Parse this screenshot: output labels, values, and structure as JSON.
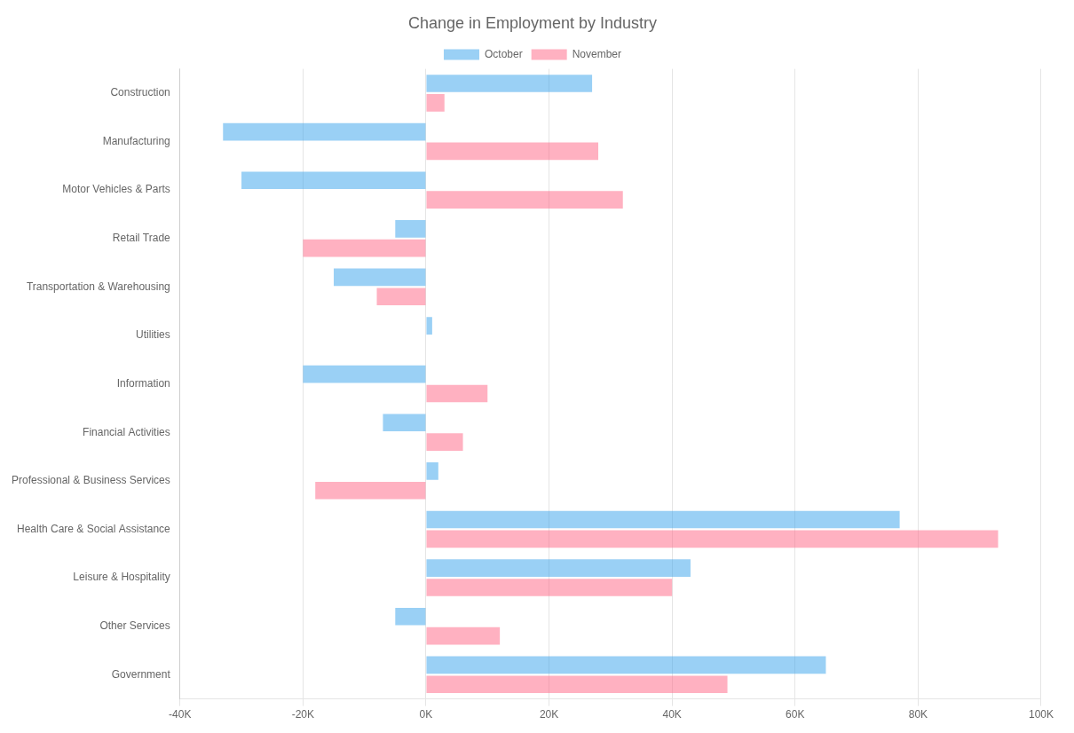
{
  "chart_data": {
    "type": "bar",
    "orientation": "horizontal",
    "title": "Change in Employment by Industry",
    "categories": [
      "Construction",
      "Manufacturing",
      "Motor Vehicles & Parts",
      "Retail Trade",
      "Transportation & Warehousing",
      "Utilities",
      "Information",
      "Financial Activities",
      "Professional & Business Services",
      "Health Care & Social Assistance",
      "Leisure & Hospitality",
      "Other Services",
      "Government"
    ],
    "series": [
      {
        "name": "October",
        "values": [
          27000,
          -33000,
          -30000,
          -5000,
          -15000,
          1000,
          -20000,
          -7000,
          2000,
          77000,
          43000,
          -5000,
          65000
        ]
      },
      {
        "name": "November",
        "values": [
          3000,
          28000,
          32000,
          -20000,
          -8000,
          0,
          10000,
          6000,
          -18000,
          93000,
          40000,
          12000,
          49000
        ]
      }
    ],
    "xlim": [
      -40000,
      100000
    ],
    "xticks": [
      {
        "value": -40000,
        "label": "-40K"
      },
      {
        "value": -20000,
        "label": "-20K"
      },
      {
        "value": 0,
        "label": "0K"
      },
      {
        "value": 20000,
        "label": "20K"
      },
      {
        "value": 40000,
        "label": "40K"
      },
      {
        "value": 60000,
        "label": "60K"
      },
      {
        "value": 80000,
        "label": "80K"
      },
      {
        "value": 100000,
        "label": "100K"
      }
    ],
    "grid": true,
    "legend": "top"
  }
}
